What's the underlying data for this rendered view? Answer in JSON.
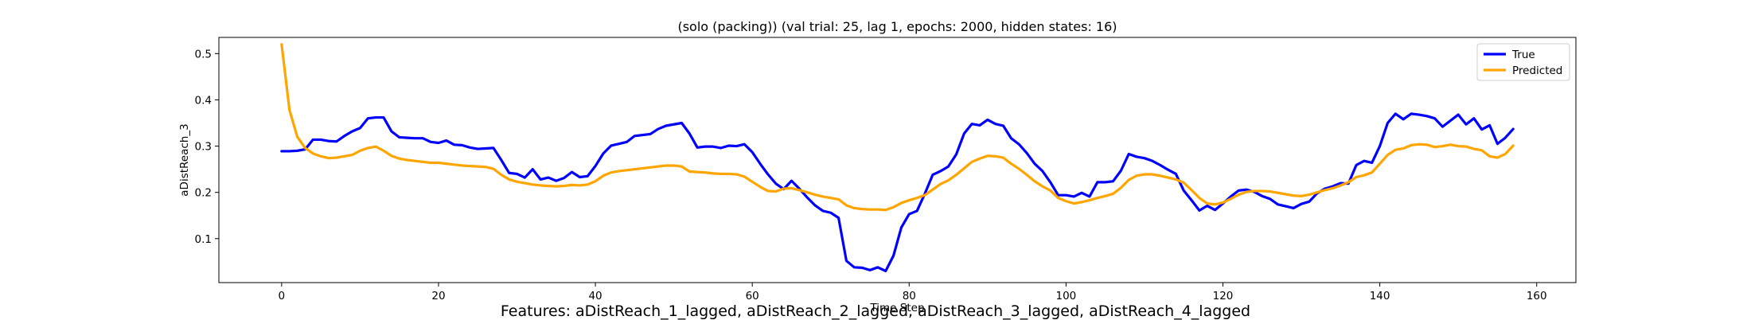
{
  "chart_data": {
    "type": "line",
    "title": "(solo (packing)) (val trial: 25, lag 1, epochs: 2000, hidden states: 16)",
    "xlabel": "Time Step",
    "ylabel": "aDistReach_3",
    "xlim": [
      -8,
      165
    ],
    "ylim": [
      0.005,
      0.535
    ],
    "xticks": [
      0,
      20,
      40,
      60,
      80,
      100,
      120,
      140,
      160
    ],
    "yticks": [
      0.1,
      0.2,
      0.3,
      0.4,
      0.5
    ],
    "grid": false,
    "legend_position": "upper right",
    "series": [
      {
        "name": "True",
        "color": "#0000ff",
        "values": [
          0.289,
          0.289,
          0.29,
          0.293,
          0.314,
          0.314,
          0.311,
          0.31,
          0.322,
          0.332,
          0.339,
          0.36,
          0.362,
          0.362,
          0.332,
          0.319,
          0.318,
          0.317,
          0.317,
          0.309,
          0.307,
          0.312,
          0.303,
          0.302,
          0.297,
          0.294,
          0.295,
          0.296,
          0.27,
          0.242,
          0.24,
          0.232,
          0.25,
          0.228,
          0.232,
          0.225,
          0.231,
          0.244,
          0.233,
          0.235,
          0.257,
          0.284,
          0.301,
          0.305,
          0.309,
          0.322,
          0.324,
          0.326,
          0.337,
          0.344,
          0.347,
          0.35,
          0.327,
          0.297,
          0.299,
          0.299,
          0.296,
          0.301,
          0.3,
          0.304,
          0.287,
          0.262,
          0.239,
          0.219,
          0.207,
          0.225,
          0.208,
          0.189,
          0.172,
          0.16,
          0.156,
          0.145,
          0.052,
          0.038,
          0.037,
          0.032,
          0.038,
          0.03,
          0.063,
          0.124,
          0.153,
          0.16,
          0.197,
          0.238,
          0.246,
          0.256,
          0.282,
          0.327,
          0.348,
          0.345,
          0.357,
          0.348,
          0.344,
          0.317,
          0.304,
          0.285,
          0.262,
          0.246,
          0.222,
          0.194,
          0.194,
          0.191,
          0.199,
          0.191,
          0.222,
          0.222,
          0.224,
          0.247,
          0.283,
          0.277,
          0.274,
          0.268,
          0.259,
          0.249,
          0.24,
          0.204,
          0.183,
          0.161,
          0.171,
          0.162,
          0.176,
          0.191,
          0.204,
          0.206,
          0.201,
          0.192,
          0.186,
          0.174,
          0.17,
          0.166,
          0.175,
          0.18,
          0.198,
          0.208,
          0.213,
          0.22,
          0.219,
          0.259,
          0.268,
          0.264,
          0.3,
          0.35,
          0.37,
          0.358,
          0.37,
          0.368,
          0.365,
          0.36,
          0.342,
          0.355,
          0.368,
          0.347,
          0.36,
          0.336,
          0.345,
          0.305,
          0.318,
          0.337
        ]
      },
      {
        "name": "Predicted",
        "color": "#ffa500",
        "values": [
          0.52,
          0.378,
          0.32,
          0.296,
          0.284,
          0.278,
          0.274,
          0.275,
          0.278,
          0.281,
          0.29,
          0.296,
          0.299,
          0.29,
          0.279,
          0.273,
          0.27,
          0.268,
          0.266,
          0.264,
          0.264,
          0.262,
          0.26,
          0.258,
          0.257,
          0.256,
          0.255,
          0.251,
          0.238,
          0.228,
          0.223,
          0.22,
          0.217,
          0.215,
          0.214,
          0.213,
          0.214,
          0.216,
          0.215,
          0.217,
          0.224,
          0.236,
          0.243,
          0.246,
          0.248,
          0.25,
          0.252,
          0.254,
          0.256,
          0.258,
          0.258,
          0.256,
          0.245,
          0.244,
          0.243,
          0.241,
          0.24,
          0.24,
          0.239,
          0.234,
          0.223,
          0.212,
          0.203,
          0.202,
          0.208,
          0.209,
          0.205,
          0.2,
          0.195,
          0.191,
          0.188,
          0.185,
          0.172,
          0.166,
          0.164,
          0.163,
          0.163,
          0.162,
          0.168,
          0.177,
          0.183,
          0.188,
          0.194,
          0.206,
          0.218,
          0.226,
          0.238,
          0.252,
          0.266,
          0.273,
          0.279,
          0.278,
          0.275,
          0.262,
          0.251,
          0.238,
          0.224,
          0.213,
          0.204,
          0.188,
          0.181,
          0.176,
          0.179,
          0.183,
          0.188,
          0.192,
          0.197,
          0.21,
          0.227,
          0.236,
          0.239,
          0.239,
          0.236,
          0.232,
          0.228,
          0.221,
          0.205,
          0.188,
          0.176,
          0.174,
          0.178,
          0.186,
          0.195,
          0.201,
          0.203,
          0.203,
          0.202,
          0.199,
          0.196,
          0.193,
          0.192,
          0.195,
          0.2,
          0.205,
          0.209,
          0.215,
          0.222,
          0.233,
          0.237,
          0.243,
          0.262,
          0.281,
          0.292,
          0.295,
          0.302,
          0.304,
          0.303,
          0.298,
          0.3,
          0.303,
          0.3,
          0.299,
          0.294,
          0.291,
          0.278,
          0.275,
          0.283,
          0.301
        ]
      }
    ]
  },
  "caption": "Features: aDistReach_1_lagged, aDistReach_2_lagged, aDistReach_3_lagged, aDistReach_4_lagged"
}
